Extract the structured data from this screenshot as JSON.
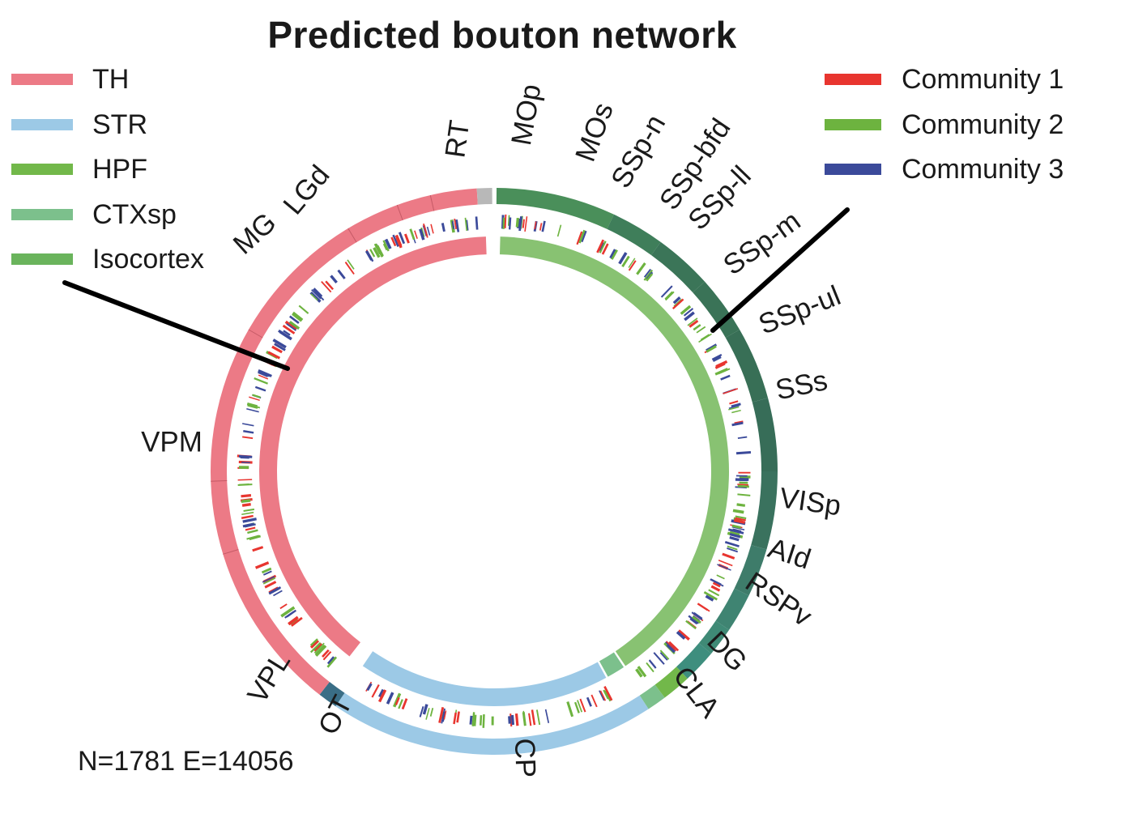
{
  "title": "Predicted bouton network",
  "legend_regions": [
    {
      "label": "TH",
      "color": "#ec7a86"
    },
    {
      "label": "STR",
      "color": "#9cc9e6"
    },
    {
      "label": "HPF",
      "color": "#72b84a"
    },
    {
      "label": "CTXsp",
      "color": "#7cc08c"
    },
    {
      "label": "Isocortex",
      "color": "#6ab45c"
    }
  ],
  "legend_communities": [
    {
      "label": "Community 1",
      "color": "#e8352f"
    },
    {
      "label": "Community 2",
      "color": "#6db33f"
    },
    {
      "label": "Community 3",
      "color": "#3b4a9a"
    }
  ],
  "stats": "N=1781 E=14056",
  "region_labels": [
    "RT",
    "LGd",
    "MG",
    "VPM",
    "VPL",
    "OT",
    "CP",
    "CLA",
    "DG",
    "RSPv",
    "AId",
    "VISp",
    "SSs",
    "SSp-ul",
    "SSp-m",
    "SSp-ll",
    "SSp-bfd",
    "SSp-n",
    "MOs",
    "MOp"
  ],
  "colors": {
    "th": "#ec7a86",
    "str": "#9cc9e6",
    "hpf": "#72b84a",
    "ctxsp": "#7cc08c",
    "isocortex_inner": "#88c272",
    "cortex_outer": "#3f7e5a",
    "chord_red": "#e56a78",
    "chord_green": "#2f7a50",
    "chord_teal": "#2f8f7f",
    "chord_blue": "#7ab8d8",
    "c1": "#e8352f",
    "c2": "#6db33f",
    "c3": "#3b4a9a"
  }
}
